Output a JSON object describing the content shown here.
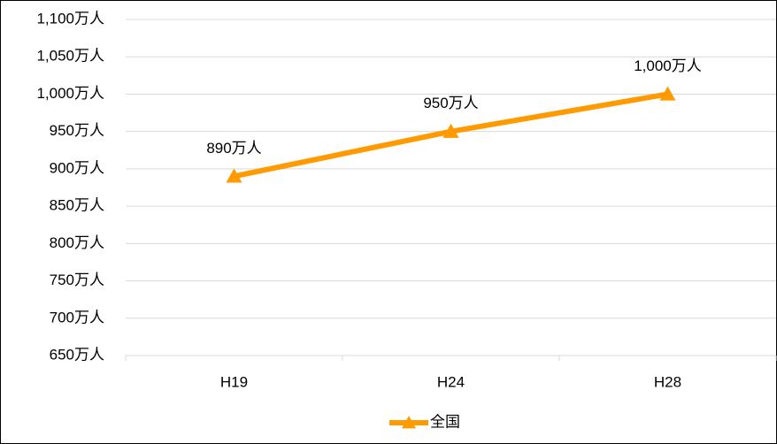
{
  "chart_data": {
    "type": "line",
    "categories": [
      "H19",
      "H24",
      "H28"
    ],
    "series": [
      {
        "name": "全国",
        "color": "#ff9a00",
        "values": [
          890,
          950,
          1000
        ],
        "value_labels": [
          "890万人",
          "950万人",
          "1,000万人"
        ]
      }
    ],
    "ylim": [
      650,
      1100
    ],
    "yticks": [
      {
        "value": 650,
        "label": "650万人"
      },
      {
        "value": 700,
        "label": "700万人"
      },
      {
        "value": 750,
        "label": "750万人"
      },
      {
        "value": 800,
        "label": "800万人"
      },
      {
        "value": 850,
        "label": "850万人"
      },
      {
        "value": 900,
        "label": "900万人"
      },
      {
        "value": 950,
        "label": "950万人"
      },
      {
        "value": 1000,
        "label": "1,000万人"
      },
      {
        "value": 1050,
        "label": "1,050万人"
      },
      {
        "value": 1100,
        "label": "1,100万人"
      }
    ],
    "grid": true,
    "legend": "bottom"
  }
}
